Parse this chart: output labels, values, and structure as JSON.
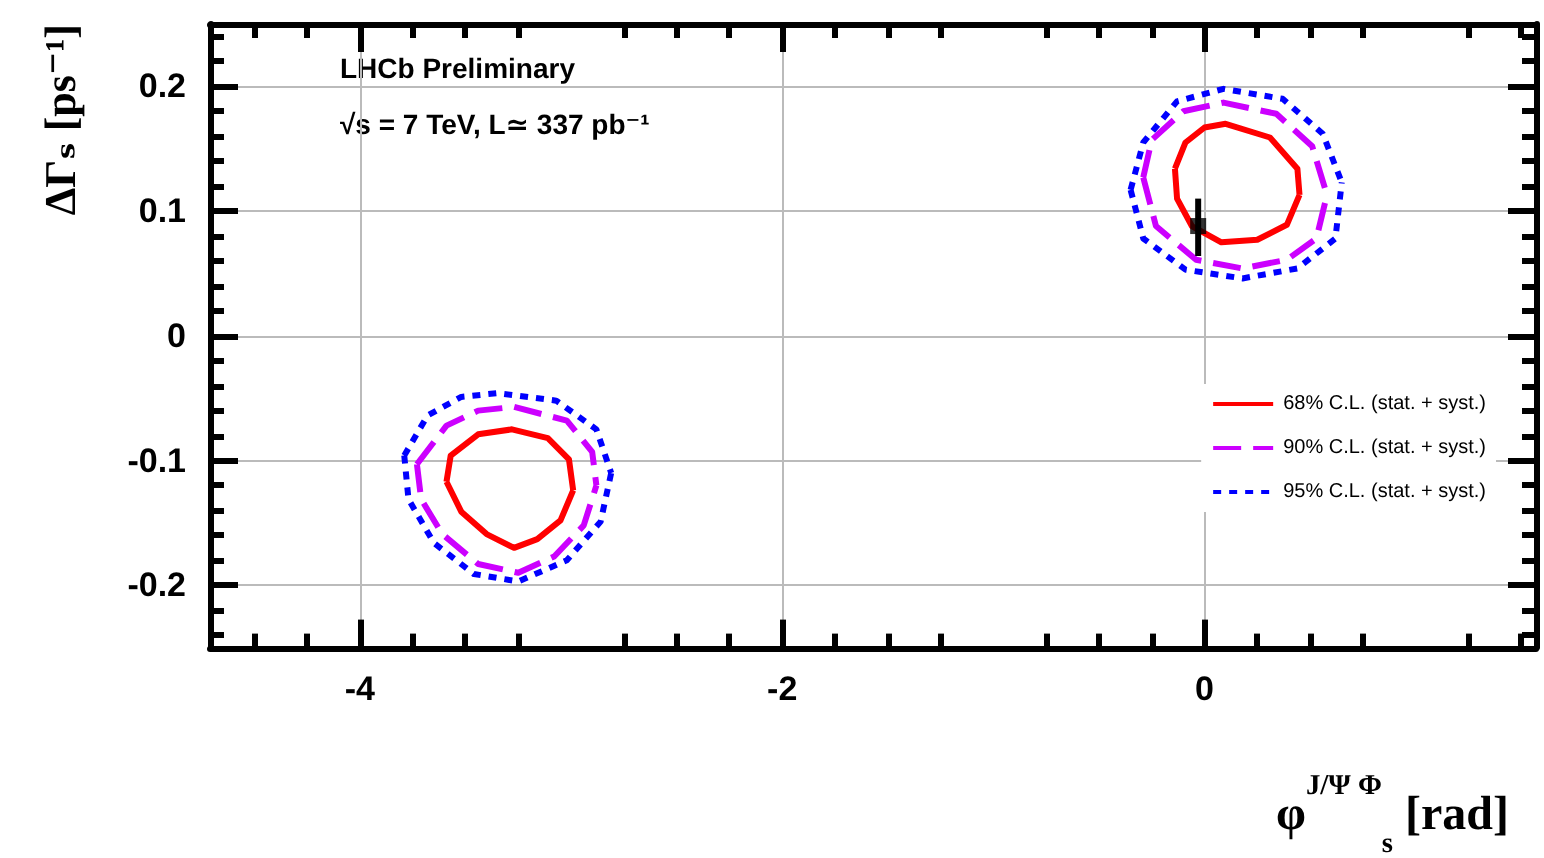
{
  "chart_data": {
    "type": "line",
    "xlabel": "φ$^{J/Ψ Φ}$$_{s}$ [rad]",
    "ylabel": "ΔΓₛ [ps⁻¹]",
    "annotations": [
      "LHCb Preliminary",
      "√s = 7 TeV, L≃ 337 pb⁻¹"
    ],
    "xlim": [
      -4.71,
      1.57
    ],
    "xticks": [
      -4,
      -2,
      0
    ],
    "ylim": [
      -0.25,
      0.25
    ],
    "yticks": [
      -0.2,
      -0.1,
      0,
      0.1,
      0.2
    ],
    "grid": true,
    "legend": "right",
    "marker": "none",
    "series": [
      {
        "name": "68% C.L. (stat. + syst.)",
        "color": "#ff0000",
        "line_style": "solid",
        "x": [
          -0.14,
          -0.09,
          0.0,
          0.1,
          0.31,
          0.44,
          0.45,
          null,
          -0.14,
          -0.13,
          -0.06,
          0.08,
          0.25,
          0.39,
          0.45,
          null,
          -3.59,
          -3.57,
          -3.44,
          -3.28,
          -3.11,
          -3.01,
          -2.99,
          null,
          -3.59,
          -3.52,
          -3.4,
          -3.27,
          -3.16,
          -3.05,
          -2.99
        ],
        "values": [
          0.134,
          0.155,
          0.167,
          0.17,
          0.159,
          0.134,
          0.113,
          null,
          0.134,
          0.11,
          0.088,
          0.075,
          0.077,
          0.089,
          0.113,
          null,
          -0.117,
          -0.096,
          -0.079,
          -0.075,
          -0.082,
          -0.099,
          -0.124,
          null,
          -0.117,
          -0.141,
          -0.159,
          -0.17,
          -0.163,
          -0.148,
          -0.124
        ]
      },
      {
        "name": "90% C.L. (stat. + syst.)",
        "color": "#cc00ff",
        "line_style": "dashed",
        "x": [
          -0.29,
          -0.25,
          -0.1,
          0.09,
          0.34,
          0.51,
          0.58,
          null,
          -0.29,
          -0.23,
          -0.04,
          0.18,
          0.39,
          0.53,
          0.58,
          null,
          -3.73,
          -3.59,
          -3.44,
          -3.27,
          -3.02,
          -2.9,
          -2.88,
          null,
          -3.73,
          -3.71,
          -3.61,
          -3.44,
          -3.25,
          -3.08,
          -2.94,
          -2.88
        ],
        "values": [
          0.127,
          0.157,
          0.18,
          0.187,
          0.178,
          0.152,
          0.113,
          null,
          0.127,
          0.088,
          0.061,
          0.054,
          0.061,
          0.078,
          0.113,
          null,
          -0.103,
          -0.072,
          -0.06,
          -0.057,
          -0.068,
          -0.093,
          -0.12,
          null,
          -0.103,
          -0.131,
          -0.159,
          -0.183,
          -0.19,
          -0.177,
          -0.152,
          -0.12
        ]
      },
      {
        "name": "95% C.L. (stat. + syst.)",
        "color": "#0000ff",
        "line_style": "dotted",
        "x": [
          -0.35,
          -0.29,
          -0.13,
          0.09,
          0.37,
          0.56,
          0.65,
          null,
          -0.35,
          -0.29,
          -0.09,
          0.18,
          0.44,
          0.62,
          0.65,
          null,
          -3.79,
          -3.68,
          -3.52,
          -3.35,
          -3.07,
          -2.88,
          -2.81,
          null,
          -3.79,
          -3.77,
          -3.65,
          -3.46,
          -3.25,
          -3.02,
          -2.86,
          -2.81
        ],
        "values": [
          0.117,
          0.155,
          0.188,
          0.198,
          0.19,
          0.162,
          0.123,
          null,
          0.117,
          0.078,
          0.053,
          0.046,
          0.054,
          0.078,
          0.123,
          null,
          -0.096,
          -0.064,
          -0.049,
          -0.046,
          -0.052,
          -0.075,
          -0.11,
          null,
          -0.096,
          -0.131,
          -0.166,
          -0.191,
          -0.197,
          -0.18,
          -0.149,
          -0.11
        ]
      },
      {
        "type": "scatter",
        "color": "#000000",
        "marker": "square",
        "x": [
          -0.03
        ],
        "values": [
          0.088
        ],
        "errors": [
          [
            0.064,
            0.11
          ]
        ]
      }
    ]
  }
}
